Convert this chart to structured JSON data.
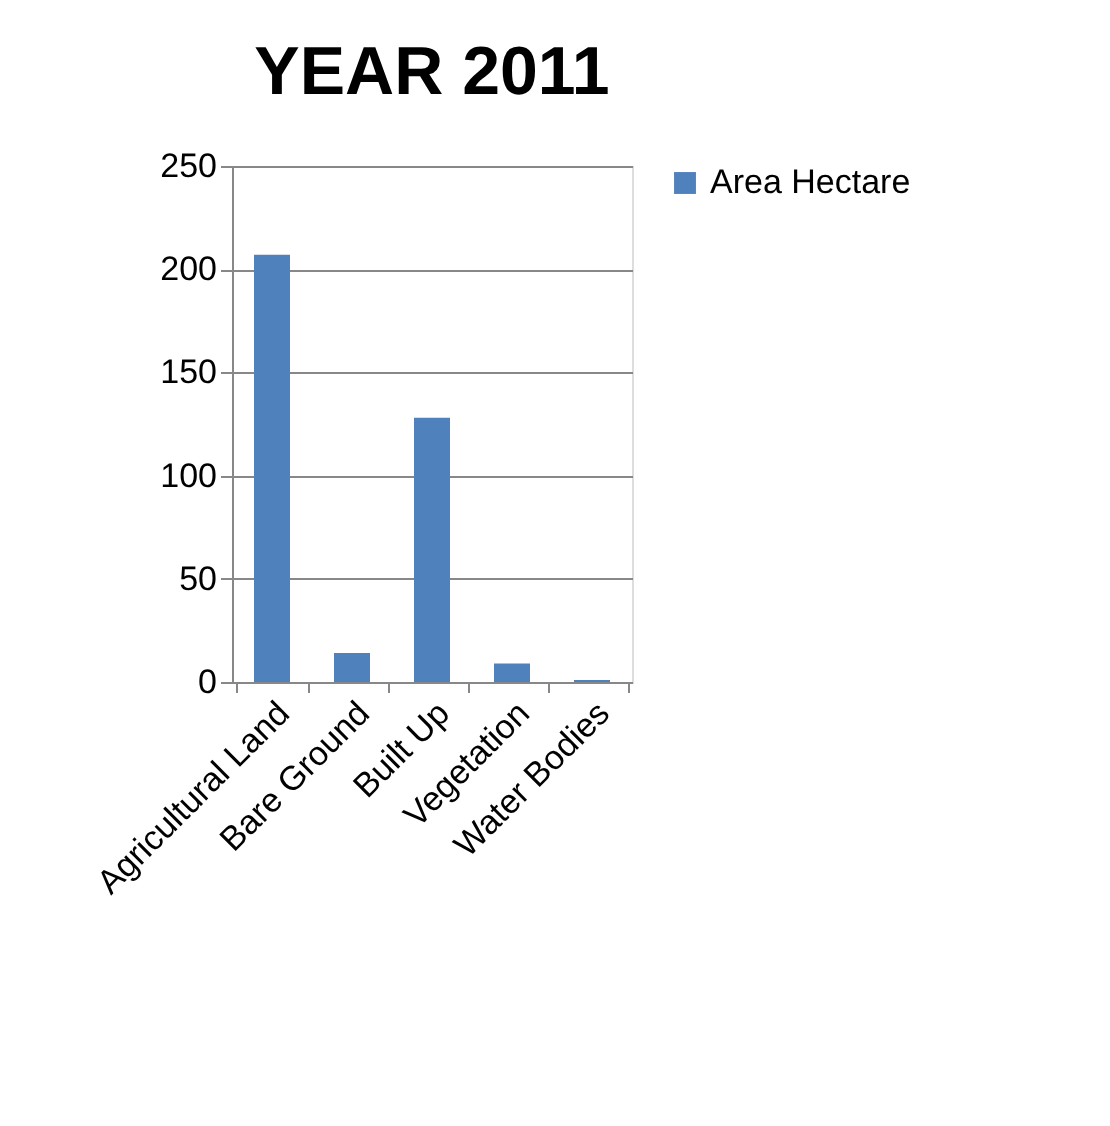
{
  "chart_data": {
    "type": "bar",
    "title": "YEAR 2011",
    "categories": [
      "Agricultural Land",
      "Bare Ground",
      "Built Up",
      "Vegetation",
      "Water Bodies"
    ],
    "series": [
      {
        "name": "Area Hectare",
        "color": "#4f81bd",
        "values": [
          207,
          14,
          128,
          9,
          1
        ]
      }
    ],
    "ylim": [
      0,
      250
    ],
    "yticks": [
      0,
      50,
      100,
      150,
      200,
      250
    ],
    "grid": "y",
    "legend": "right"
  }
}
